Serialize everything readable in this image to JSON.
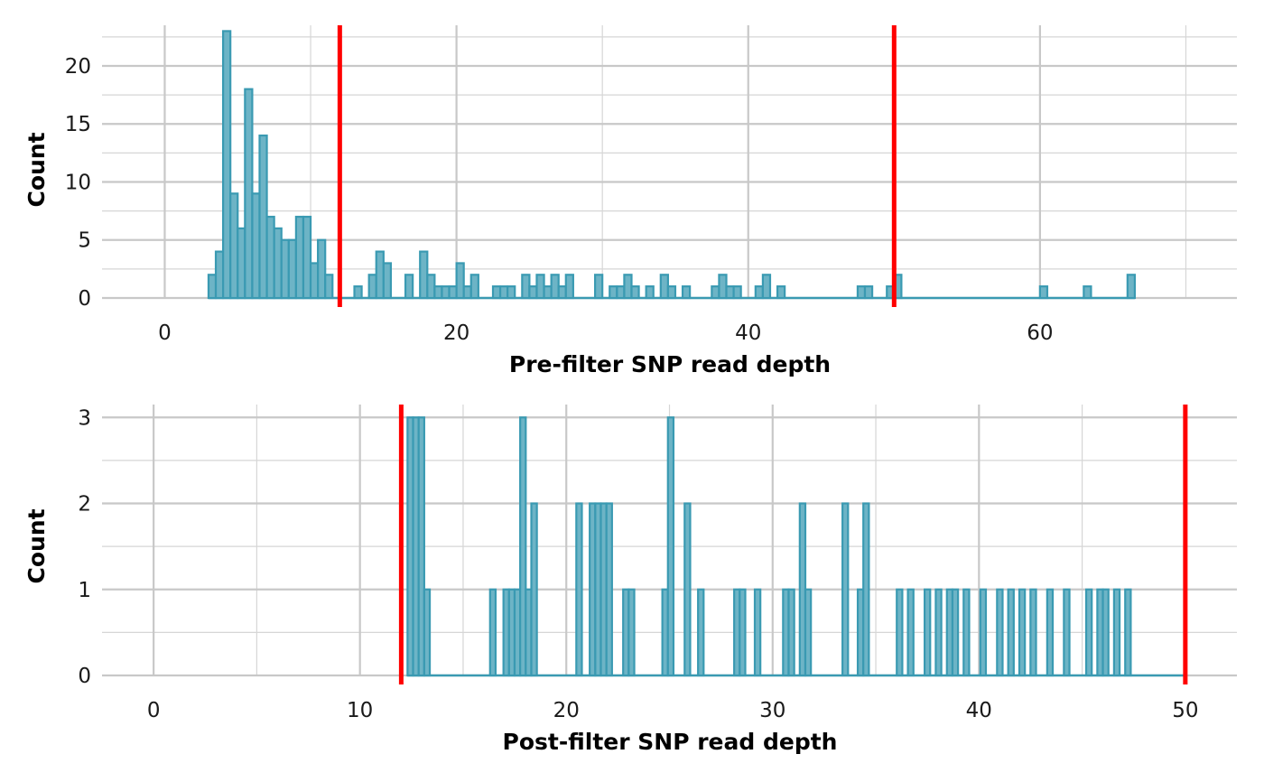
{
  "colors": {
    "bar_fill": "#6db4c6",
    "bar_stroke": "#3a9ab2",
    "threshold_line": "#ff0000"
  },
  "chart_data": [
    {
      "type": "bar",
      "subtype": "histogram",
      "xlabel": "Pre-filter SNP read depth",
      "ylabel": "Count",
      "xlim": [
        -4.3,
        73.5
      ],
      "ylim": [
        0,
        23.5
      ],
      "x_ticks": [
        0,
        20,
        40,
        60
      ],
      "y_ticks": [
        0,
        5,
        10,
        15,
        20
      ],
      "bin_width": 0.5,
      "grid": true,
      "thresholds": [
        12,
        50
      ],
      "bins": [
        {
          "x": 3.25,
          "count": 2
        },
        {
          "x": 3.75,
          "count": 4
        },
        {
          "x": 4.25,
          "count": 23
        },
        {
          "x": 4.75,
          "count": 9
        },
        {
          "x": 5.25,
          "count": 6
        },
        {
          "x": 5.75,
          "count": 18
        },
        {
          "x": 6.25,
          "count": 9
        },
        {
          "x": 6.75,
          "count": 14
        },
        {
          "x": 7.25,
          "count": 7
        },
        {
          "x": 7.75,
          "count": 6
        },
        {
          "x": 8.25,
          "count": 5
        },
        {
          "x": 8.75,
          "count": 5
        },
        {
          "x": 9.25,
          "count": 7
        },
        {
          "x": 9.75,
          "count": 7
        },
        {
          "x": 10.25,
          "count": 3
        },
        {
          "x": 10.75,
          "count": 5
        },
        {
          "x": 11.25,
          "count": 2
        },
        {
          "x": 13.25,
          "count": 1
        },
        {
          "x": 14.25,
          "count": 2
        },
        {
          "x": 14.75,
          "count": 4
        },
        {
          "x": 15.25,
          "count": 3
        },
        {
          "x": 16.75,
          "count": 2
        },
        {
          "x": 17.75,
          "count": 4
        },
        {
          "x": 18.25,
          "count": 2
        },
        {
          "x": 18.75,
          "count": 1
        },
        {
          "x": 19.25,
          "count": 1
        },
        {
          "x": 19.75,
          "count": 1
        },
        {
          "x": 20.25,
          "count": 3
        },
        {
          "x": 20.75,
          "count": 1
        },
        {
          "x": 21.25,
          "count": 2
        },
        {
          "x": 22.75,
          "count": 1
        },
        {
          "x": 23.25,
          "count": 1
        },
        {
          "x": 23.75,
          "count": 1
        },
        {
          "x": 24.75,
          "count": 2
        },
        {
          "x": 25.25,
          "count": 1
        },
        {
          "x": 25.75,
          "count": 2
        },
        {
          "x": 26.25,
          "count": 1
        },
        {
          "x": 26.75,
          "count": 2
        },
        {
          "x": 27.25,
          "count": 1
        },
        {
          "x": 27.75,
          "count": 2
        },
        {
          "x": 29.75,
          "count": 2
        },
        {
          "x": 30.75,
          "count": 1
        },
        {
          "x": 31.25,
          "count": 1
        },
        {
          "x": 31.75,
          "count": 2
        },
        {
          "x": 32.25,
          "count": 1
        },
        {
          "x": 33.25,
          "count": 1
        },
        {
          "x": 34.25,
          "count": 2
        },
        {
          "x": 34.75,
          "count": 1
        },
        {
          "x": 35.75,
          "count": 1
        },
        {
          "x": 37.75,
          "count": 1
        },
        {
          "x": 38.25,
          "count": 2
        },
        {
          "x": 38.75,
          "count": 1
        },
        {
          "x": 39.25,
          "count": 1
        },
        {
          "x": 40.75,
          "count": 1
        },
        {
          "x": 41.25,
          "count": 2
        },
        {
          "x": 42.25,
          "count": 1
        },
        {
          "x": 47.75,
          "count": 1
        },
        {
          "x": 48.25,
          "count": 1
        },
        {
          "x": 49.75,
          "count": 1
        },
        {
          "x": 50.25,
          "count": 2
        },
        {
          "x": 60.25,
          "count": 1
        },
        {
          "x": 63.25,
          "count": 1
        },
        {
          "x": 66.25,
          "count": 2
        }
      ],
      "baseline_range": [
        3.0,
        66.5
      ]
    },
    {
      "type": "bar",
      "subtype": "histogram",
      "xlabel": "Post-filter SNP read depth",
      "ylabel": "Count",
      "xlim": [
        -2.5,
        52.5
      ],
      "ylim": [
        0,
        3.15
      ],
      "x_ticks": [
        0,
        10,
        20,
        30,
        40,
        50
      ],
      "y_ticks": [
        0,
        1,
        2,
        3
      ],
      "bin_width": 0.27,
      "grid": true,
      "thresholds": [
        12,
        50
      ],
      "bins": [
        {
          "x": 12.44,
          "count": 3
        },
        {
          "x": 12.71,
          "count": 3
        },
        {
          "x": 12.98,
          "count": 3
        },
        {
          "x": 13.25,
          "count": 1
        },
        {
          "x": 16.44,
          "count": 1
        },
        {
          "x": 17.09,
          "count": 1
        },
        {
          "x": 17.36,
          "count": 1
        },
        {
          "x": 17.63,
          "count": 1
        },
        {
          "x": 17.9,
          "count": 3
        },
        {
          "x": 18.17,
          "count": 1
        },
        {
          "x": 18.44,
          "count": 2
        },
        {
          "x": 20.62,
          "count": 2
        },
        {
          "x": 21.27,
          "count": 2
        },
        {
          "x": 21.54,
          "count": 2
        },
        {
          "x": 21.81,
          "count": 2
        },
        {
          "x": 22.08,
          "count": 2
        },
        {
          "x": 22.89,
          "count": 1
        },
        {
          "x": 23.16,
          "count": 1
        },
        {
          "x": 24.79,
          "count": 1
        },
        {
          "x": 25.06,
          "count": 3
        },
        {
          "x": 25.87,
          "count": 2
        },
        {
          "x": 26.52,
          "count": 1
        },
        {
          "x": 28.27,
          "count": 1
        },
        {
          "x": 28.54,
          "count": 1
        },
        {
          "x": 29.27,
          "count": 1
        },
        {
          "x": 30.64,
          "count": 1
        },
        {
          "x": 30.91,
          "count": 1
        },
        {
          "x": 31.45,
          "count": 2
        },
        {
          "x": 31.72,
          "count": 1
        },
        {
          "x": 33.52,
          "count": 2
        },
        {
          "x": 34.26,
          "count": 1
        },
        {
          "x": 34.53,
          "count": 2
        },
        {
          "x": 36.15,
          "count": 1
        },
        {
          "x": 36.69,
          "count": 1
        },
        {
          "x": 37.5,
          "count": 1
        },
        {
          "x": 38.04,
          "count": 1
        },
        {
          "x": 38.58,
          "count": 1
        },
        {
          "x": 38.85,
          "count": 1
        },
        {
          "x": 39.39,
          "count": 1
        },
        {
          "x": 40.2,
          "count": 1
        },
        {
          "x": 41.01,
          "count": 1
        },
        {
          "x": 41.55,
          "count": 1
        },
        {
          "x": 42.09,
          "count": 1
        },
        {
          "x": 42.63,
          "count": 1
        },
        {
          "x": 43.44,
          "count": 1
        },
        {
          "x": 44.25,
          "count": 1
        },
        {
          "x": 45.33,
          "count": 1
        },
        {
          "x": 45.87,
          "count": 1
        },
        {
          "x": 46.14,
          "count": 1
        },
        {
          "x": 46.68,
          "count": 1
        },
        {
          "x": 47.22,
          "count": 1
        }
      ],
      "baseline_range": [
        12.3,
        50.0
      ]
    }
  ]
}
